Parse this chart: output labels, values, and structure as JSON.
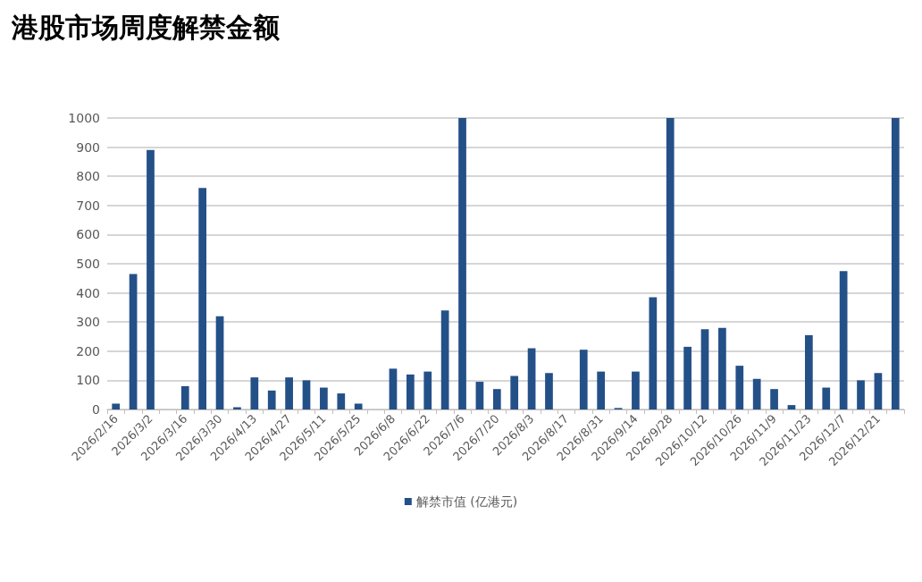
{
  "chart_data": {
    "type": "bar",
    "title": "港股市场周度解禁金额",
    "categories": [
      "2026/2/16",
      null,
      "2026/3/2",
      null,
      "2026/3/16",
      null,
      "2026/3/30",
      null,
      "2026/4/13",
      null,
      "2026/4/27",
      null,
      "2026/5/11",
      null,
      "2026/5/25",
      null,
      "2026/6/8",
      null,
      "2026/6/22",
      null,
      "2026/7/6",
      null,
      "2026/7/20",
      null,
      "2026/8/3",
      null,
      "2026/8/17",
      null,
      "2026/8/31",
      null,
      "2026/9/14",
      null,
      "2026/9/28",
      null,
      "2026/10/12",
      null,
      "2026/10/26",
      null,
      "2026/11/9",
      null,
      "2026/11/23",
      null,
      "2026/12/7",
      null,
      "2026/12/21",
      null
    ],
    "series": [
      {
        "name": "解禁市值 (亿港元)",
        "color": "#245088",
        "values": [
          20,
          465,
          890,
          0,
          80,
          760,
          320,
          8,
          110,
          65,
          110,
          100,
          75,
          55,
          20,
          0,
          140,
          120,
          130,
          340,
          1000,
          95,
          70,
          115,
          210,
          125,
          0,
          205,
          130,
          5,
          130,
          385,
          1000,
          215,
          275,
          280,
          150,
          105,
          70,
          15,
          255,
          75,
          475,
          100,
          125,
          1000
        ]
      }
    ],
    "ylim": [
      0,
      1000
    ],
    "yticks": [
      0,
      100,
      200,
      300,
      400,
      500,
      600,
      700,
      800,
      900,
      1000
    ],
    "grid": "y",
    "legend": "bottom"
  }
}
